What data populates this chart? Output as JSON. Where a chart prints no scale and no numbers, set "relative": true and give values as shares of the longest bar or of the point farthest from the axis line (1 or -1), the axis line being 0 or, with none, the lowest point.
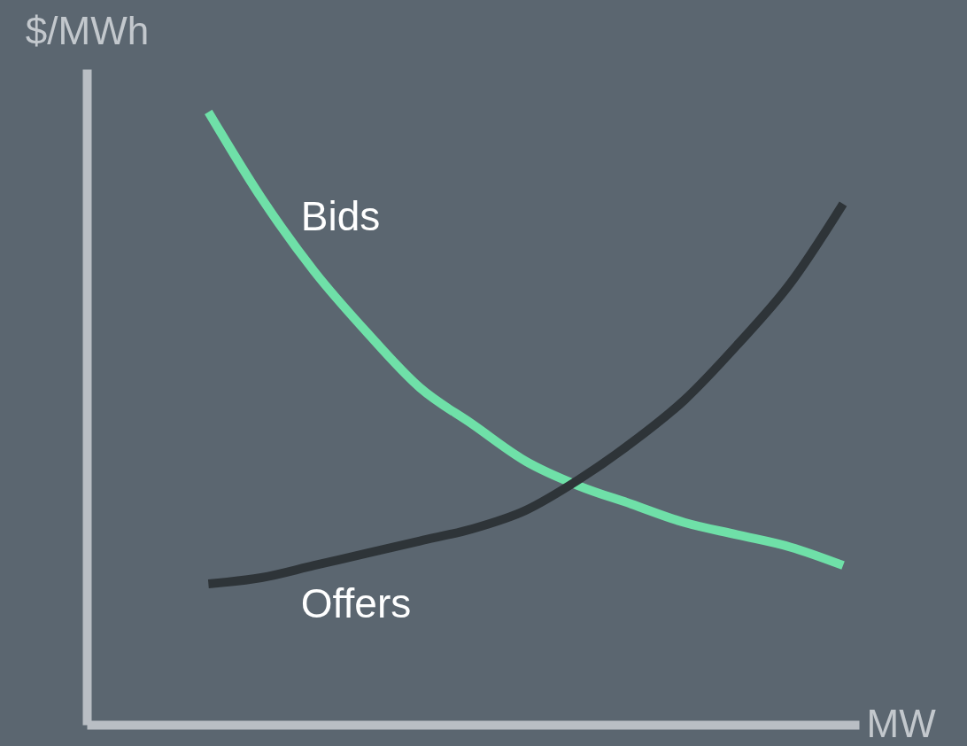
{
  "chart_data": {
    "type": "line",
    "relative": true,
    "xlabel": "MW",
    "ylabel": "$/MWh",
    "categories": [
      null,
      null,
      null,
      null,
      null,
      null,
      null,
      null,
      null,
      null,
      null,
      null,
      null,
      null,
      null
    ],
    "series": [
      {
        "name": "Bids",
        "color": "#6fe0a8",
        "values": [
          null,
          null,
          1,
          0.86,
          0.74,
          0.64,
          0.55,
          0.49,
          0.43,
          0.39,
          0.36,
          0.33,
          0.31,
          0.29,
          0.26
        ]
      },
      {
        "name": "Offers",
        "color": "#2e3438",
        "values": [
          null,
          null,
          0.23,
          0.24,
          0.26,
          0.28,
          0.3,
          0.32,
          0.35,
          0.4,
          0.46,
          0.53,
          0.62,
          0.72,
          0.85
        ]
      }
    ]
  }
}
